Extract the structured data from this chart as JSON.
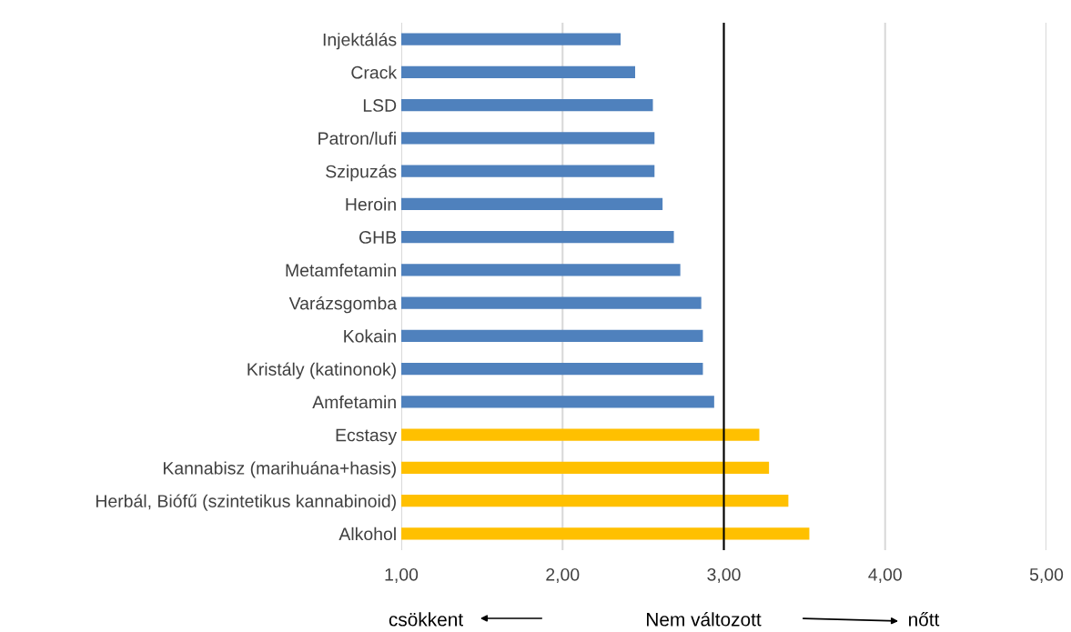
{
  "chart_data": {
    "type": "bar",
    "orientation": "horizontal",
    "categories": [
      "Injektálás",
      "Crack",
      "LSD",
      "Patron/lufi",
      "Szipuzás",
      "Heroin",
      "GHB",
      "Metamfetamin",
      "Varázsgomba",
      "Kokain",
      "Kristály (katinonok)",
      "Amfetamin",
      "Ecstasy",
      "Kannabisz (marihuána+hasis)",
      "Herbál, Biófű (szintetikus kannabinoid)",
      "Alkohol"
    ],
    "values": [
      2.36,
      2.45,
      2.56,
      2.57,
      2.57,
      2.62,
      2.69,
      2.73,
      2.86,
      2.87,
      2.87,
      2.94,
      3.22,
      3.28,
      3.4,
      3.53
    ],
    "colors": [
      "#4f81bd",
      "#4f81bd",
      "#4f81bd",
      "#4f81bd",
      "#4f81bd",
      "#4f81bd",
      "#4f81bd",
      "#4f81bd",
      "#4f81bd",
      "#4f81bd",
      "#4f81bd",
      "#4f81bd",
      "#ffc000",
      "#ffc000",
      "#ffc000",
      "#ffc000"
    ],
    "xlim": [
      1,
      5
    ],
    "xticks": [
      {
        "value": 1,
        "label": "1,00"
      },
      {
        "value": 2,
        "label": "2,00"
      },
      {
        "value": 3,
        "label": "3,00"
      },
      {
        "value": 4,
        "label": "4,00"
      },
      {
        "value": 5,
        "label": "5,00"
      }
    ],
    "grid": "x",
    "ref_lines": [
      {
        "axis": "x",
        "value": 3,
        "color": "#000000"
      }
    ],
    "annotations": [
      "csökkent",
      "Nem változott",
      "nőtt"
    ]
  }
}
